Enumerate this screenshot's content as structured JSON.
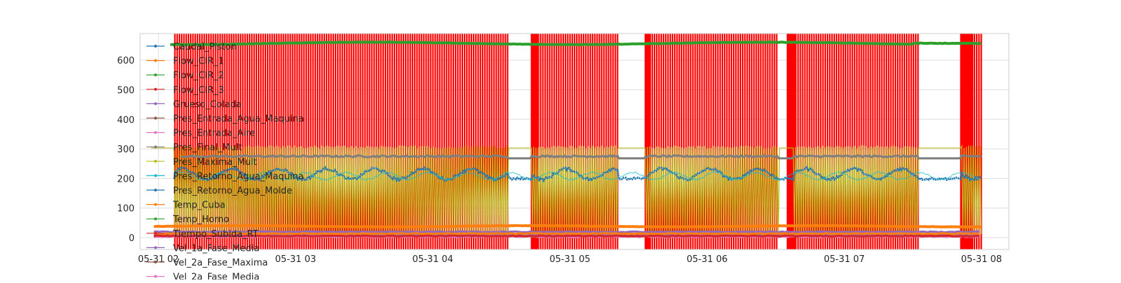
{
  "chart_data": {
    "type": "line",
    "title": "",
    "xlabel": "",
    "ylabel": "",
    "x_axis": {
      "type": "time",
      "range": [
        "2023-05-31 01:52",
        "2023-05-31 08:12"
      ],
      "tick_labels": [
        "05-31 02",
        "05-31 03",
        "05-31 04",
        "05-31 05",
        "05-31 06",
        "05-31 07",
        "05-31 08"
      ],
      "tick_positions_hours": [
        2,
        3,
        4,
        5,
        6,
        7,
        8
      ]
    },
    "y_axis": {
      "range": [
        -40,
        690
      ],
      "ticks": [
        0,
        100,
        200,
        300,
        400,
        500,
        600
      ]
    },
    "grid": true,
    "legend": {
      "placement": "upper-left",
      "overflow_truncated": true
    },
    "colors": {
      "Caudal_Piston": "#1f77b4",
      "Flow_CIR_1": "#ff7f0e",
      "Flow_CIR_2": "#2ca02c",
      "Flow_CIR_3": "#d62728",
      "Grueso_Colada": "#9467bd",
      "Pres_Entrada_Agua_Maquina": "#8c564b",
      "Pres_Entrada_Aire": "#e377c2",
      "Pres_Final_Mult": "#7f7f7f",
      "Pres_Maxima_Mult": "#bcbd22",
      "Pres_Retorno_Agua_Maquina": "#17becf",
      "Pres_Retorno_Agua_Molde": "#1f77b4",
      "Temp_Cuba": "#ff7f0e",
      "Temp_Horno": "#2ca02c",
      "Tiempo_Subida_RT": "#d62728",
      "Vel_1a_Fase_Media": "#9467bd",
      "Vel_2a_Fase_Maxima": "#8c564b",
      "Vel_2a_Fase_Media": "#e377c2",
      "event_marker": "#ff0000"
    },
    "series": [
      {
        "name": "Caudal_Piston",
        "values": []
      },
      {
        "name": "Flow_CIR_1",
        "values": []
      },
      {
        "name": "Flow_CIR_2",
        "values": []
      },
      {
        "name": "Flow_CIR_3",
        "values": []
      },
      {
        "name": "Grueso_Colada",
        "values": []
      },
      {
        "name": "Pres_Entrada_Agua_Maquina",
        "values": []
      },
      {
        "name": "Pres_Entrada_Aire",
        "values": []
      },
      {
        "name": "Pres_Final_Mult",
        "values": []
      },
      {
        "name": "Pres_Maxima_Mult",
        "values": []
      },
      {
        "name": "Pres_Retorno_Agua_Maquina",
        "values": []
      },
      {
        "name": "Pres_Retorno_Agua_Molde",
        "values": []
      },
      {
        "name": "Temp_Cuba",
        "values": []
      },
      {
        "name": "Temp_Horno",
        "values": []
      },
      {
        "name": "Tiempo_Subida_RT",
        "values": []
      },
      {
        "name": "Vel_1a_Fase_Media",
        "values": []
      },
      {
        "name": "Vel_2a_Fase_Maxima",
        "values": []
      },
      {
        "name": "Vel_2a_Fase_Media",
        "values": []
      }
    ],
    "production_segments_hours": [
      [
        2.12,
        4.55
      ],
      [
        4.72,
        5.35
      ],
      [
        5.55,
        6.52
      ],
      [
        6.63,
        7.54
      ],
      [
        7.85,
        8.0
      ]
    ],
    "dense_red_segments_hours": [
      [
        4.72,
        4.77
      ],
      [
        5.55,
        5.59
      ],
      [
        6.58,
        6.65
      ],
      [
        7.85,
        7.94
      ]
    ],
    "approx_levels": {
      "Temp_Horno": [
        655,
        662
      ],
      "Pres_Maxima_Mult": [
        300,
        312
      ],
      "Pres_Final_Mult": [
        265,
        285
      ],
      "Pres_Retorno_Agua_Molde": [
        175,
        235
      ],
      "Temp_Cuba": [
        35,
        42
      ],
      "Grueso_Colada": [
        0,
        20
      ]
    }
  }
}
